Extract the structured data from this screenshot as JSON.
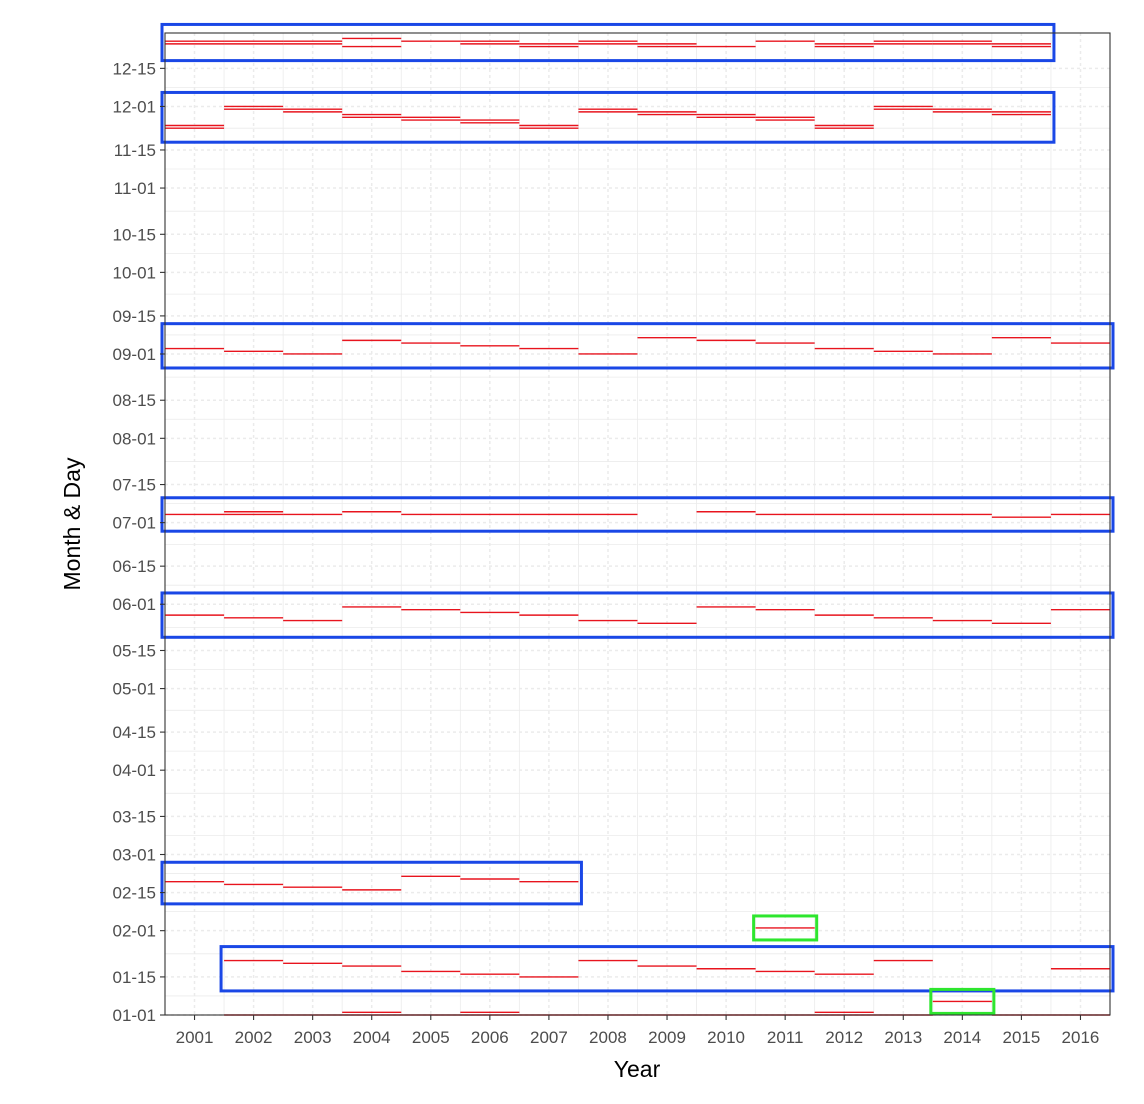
{
  "chart_data": {
    "type": "scatter",
    "mark": "horizontal-segment",
    "xlabel": "Year",
    "ylabel": "Month & Day",
    "x_ticks": [
      "2001",
      "2002",
      "2003",
      "2004",
      "2005",
      "2006",
      "2007",
      "2008",
      "2009",
      "2010",
      "2011",
      "2012",
      "2013",
      "2014",
      "2015",
      "2016"
    ],
    "y_ticks": [
      "01-01",
      "01-15",
      "02-01",
      "02-15",
      "03-01",
      "03-15",
      "04-01",
      "04-15",
      "05-01",
      "05-15",
      "06-01",
      "06-15",
      "07-01",
      "07-15",
      "08-01",
      "08-15",
      "09-01",
      "09-15",
      "10-01",
      "10-15",
      "11-01",
      "11-15",
      "12-01",
      "12-15"
    ],
    "xlim": [
      2000.5,
      2016.5
    ],
    "ylim": [
      "01-01",
      "12-28"
    ],
    "grid": true,
    "colors": {
      "segment": "#e8141e",
      "group_box": "#1a47e6",
      "outlier_box": "#2ee62e",
      "grid": "#ebebeb"
    },
    "groups": [
      {
        "segments": [
          {
            "year": 2001,
            "dates": [
              "12-24",
              "12-25"
            ]
          },
          {
            "year": 2002,
            "dates": [
              "12-24",
              "12-25"
            ]
          },
          {
            "year": 2003,
            "dates": [
              "12-24",
              "12-25"
            ]
          },
          {
            "year": 2004,
            "dates": [
              "12-23",
              "12-26"
            ]
          },
          {
            "year": 2005,
            "dates": [
              "12-25"
            ]
          },
          {
            "year": 2006,
            "dates": [
              "12-24",
              "12-25"
            ]
          },
          {
            "year": 2007,
            "dates": [
              "12-23",
              "12-24"
            ]
          },
          {
            "year": 2008,
            "dates": [
              "12-24",
              "12-25"
            ]
          },
          {
            "year": 2009,
            "dates": [
              "12-23",
              "12-24"
            ]
          },
          {
            "year": 2010,
            "dates": [
              "12-23"
            ]
          },
          {
            "year": 2011,
            "dates": [
              "12-25"
            ]
          },
          {
            "year": 2012,
            "dates": [
              "12-23",
              "12-24"
            ]
          },
          {
            "year": 2013,
            "dates": [
              "12-24",
              "12-25"
            ]
          },
          {
            "year": 2014,
            "dates": [
              "12-24",
              "12-25"
            ]
          },
          {
            "year": 2015,
            "dates": [
              "12-23",
              "12-24"
            ]
          }
        ]
      },
      {
        "segments": [
          {
            "year": 2001,
            "dates": [
              "11-23",
              "11-24"
            ]
          },
          {
            "year": 2002,
            "dates": [
              "11-30",
              "12-01"
            ]
          },
          {
            "year": 2003,
            "dates": [
              "11-29",
              "11-30"
            ]
          },
          {
            "year": 2004,
            "dates": [
              "11-27",
              "11-28"
            ]
          },
          {
            "year": 2005,
            "dates": [
              "11-26",
              "11-27"
            ]
          },
          {
            "year": 2006,
            "dates": [
              "11-25",
              "11-26"
            ]
          },
          {
            "year": 2007,
            "dates": [
              "11-23",
              "11-24"
            ]
          },
          {
            "year": 2008,
            "dates": [
              "11-29",
              "11-30"
            ]
          },
          {
            "year": 2009,
            "dates": [
              "11-28",
              "11-29"
            ]
          },
          {
            "year": 2010,
            "dates": [
              "11-27",
              "11-28"
            ]
          },
          {
            "year": 2011,
            "dates": [
              "11-26",
              "11-27"
            ]
          },
          {
            "year": 2012,
            "dates": [
              "11-23",
              "11-24"
            ]
          },
          {
            "year": 2013,
            "dates": [
              "11-30",
              "12-01"
            ]
          },
          {
            "year": 2014,
            "dates": [
              "11-29",
              "11-30"
            ]
          },
          {
            "year": 2015,
            "dates": [
              "11-28",
              "11-29"
            ]
          }
        ]
      },
      {
        "segments": [
          {
            "year": 2001,
            "dates": [
              "09-03"
            ]
          },
          {
            "year": 2002,
            "dates": [
              "09-02"
            ]
          },
          {
            "year": 2003,
            "dates": [
              "09-01"
            ]
          },
          {
            "year": 2004,
            "dates": [
              "09-06"
            ]
          },
          {
            "year": 2005,
            "dates": [
              "09-05"
            ]
          },
          {
            "year": 2006,
            "dates": [
              "09-04"
            ]
          },
          {
            "year": 2007,
            "dates": [
              "09-03"
            ]
          },
          {
            "year": 2008,
            "dates": [
              "09-01"
            ]
          },
          {
            "year": 2009,
            "dates": [
              "09-07"
            ]
          },
          {
            "year": 2010,
            "dates": [
              "09-06"
            ]
          },
          {
            "year": 2011,
            "dates": [
              "09-05"
            ]
          },
          {
            "year": 2012,
            "dates": [
              "09-03"
            ]
          },
          {
            "year": 2013,
            "dates": [
              "09-02"
            ]
          },
          {
            "year": 2014,
            "dates": [
              "09-01"
            ]
          },
          {
            "year": 2015,
            "dates": [
              "09-07"
            ]
          },
          {
            "year": 2016,
            "dates": [
              "09-05"
            ]
          }
        ]
      },
      {
        "segments": [
          {
            "year": 2001,
            "dates": [
              "07-04"
            ]
          },
          {
            "year": 2002,
            "dates": [
              "07-04",
              "07-05"
            ]
          },
          {
            "year": 2003,
            "dates": [
              "07-04"
            ]
          },
          {
            "year": 2004,
            "dates": [
              "07-05"
            ]
          },
          {
            "year": 2005,
            "dates": [
              "07-04"
            ]
          },
          {
            "year": 2006,
            "dates": [
              "07-04"
            ]
          },
          {
            "year": 2007,
            "dates": [
              "07-04"
            ]
          },
          {
            "year": 2008,
            "dates": [
              "07-04"
            ]
          },
          {
            "year": 2010,
            "dates": [
              "07-05"
            ]
          },
          {
            "year": 2011,
            "dates": [
              "07-04"
            ]
          },
          {
            "year": 2012,
            "dates": [
              "07-04"
            ]
          },
          {
            "year": 2013,
            "dates": [
              "07-04"
            ]
          },
          {
            "year": 2014,
            "dates": [
              "07-04"
            ]
          },
          {
            "year": 2015,
            "dates": [
              "07-03"
            ]
          },
          {
            "year": 2016,
            "dates": [
              "07-04"
            ]
          }
        ]
      },
      {
        "segments": [
          {
            "year": 2001,
            "dates": [
              "05-28"
            ]
          },
          {
            "year": 2002,
            "dates": [
              "05-27"
            ]
          },
          {
            "year": 2003,
            "dates": [
              "05-26"
            ]
          },
          {
            "year": 2004,
            "dates": [
              "05-31"
            ]
          },
          {
            "year": 2005,
            "dates": [
              "05-30"
            ]
          },
          {
            "year": 2006,
            "dates": [
              "05-29"
            ]
          },
          {
            "year": 2007,
            "dates": [
              "05-28"
            ]
          },
          {
            "year": 2008,
            "dates": [
              "05-26"
            ]
          },
          {
            "year": 2009,
            "dates": [
              "05-25"
            ]
          },
          {
            "year": 2010,
            "dates": [
              "05-31"
            ]
          },
          {
            "year": 2011,
            "dates": [
              "05-30"
            ]
          },
          {
            "year": 2012,
            "dates": [
              "05-28"
            ]
          },
          {
            "year": 2013,
            "dates": [
              "05-27"
            ]
          },
          {
            "year": 2014,
            "dates": [
              "05-26"
            ]
          },
          {
            "year": 2015,
            "dates": [
              "05-25"
            ]
          },
          {
            "year": 2016,
            "dates": [
              "05-30"
            ]
          }
        ]
      },
      {
        "segments": [
          {
            "year": 2001,
            "dates": [
              "02-19"
            ]
          },
          {
            "year": 2002,
            "dates": [
              "02-18"
            ]
          },
          {
            "year": 2003,
            "dates": [
              "02-17"
            ]
          },
          {
            "year": 2004,
            "dates": [
              "02-16"
            ]
          },
          {
            "year": 2005,
            "dates": [
              "02-21"
            ]
          },
          {
            "year": 2006,
            "dates": [
              "02-20"
            ]
          },
          {
            "year": 2007,
            "dates": [
              "02-19"
            ]
          }
        ]
      },
      {
        "segments": [
          {
            "year": 2002,
            "dates": [
              "01-21"
            ]
          },
          {
            "year": 2003,
            "dates": [
              "01-20"
            ]
          },
          {
            "year": 2004,
            "dates": [
              "01-19"
            ]
          },
          {
            "year": 2005,
            "dates": [
              "01-17"
            ]
          },
          {
            "year": 2006,
            "dates": [
              "01-16"
            ]
          },
          {
            "year": 2007,
            "dates": [
              "01-15"
            ]
          },
          {
            "year": 2008,
            "dates": [
              "01-21"
            ]
          },
          {
            "year": 2009,
            "dates": [
              "01-19"
            ]
          },
          {
            "year": 2010,
            "dates": [
              "01-18"
            ]
          },
          {
            "year": 2011,
            "dates": [
              "01-17"
            ]
          },
          {
            "year": 2012,
            "dates": [
              "01-16"
            ]
          },
          {
            "year": 2013,
            "dates": [
              "01-21"
            ]
          },
          {
            "year": 2016,
            "dates": [
              "01-18"
            ]
          }
        ]
      }
    ],
    "outliers": [
      {
        "year": 2011,
        "dates": [
          "02-02"
        ]
      },
      {
        "year": 2014,
        "dates": [
          "01-06"
        ]
      }
    ],
    "new_year_segments": [
      {
        "year": 2002,
        "dates": [
          "01-01"
        ]
      },
      {
        "year": 2003,
        "dates": [
          "01-01"
        ]
      },
      {
        "year": 2004,
        "dates": [
          "01-01",
          "01-02"
        ]
      },
      {
        "year": 2005,
        "dates": [
          "01-01"
        ]
      },
      {
        "year": 2006,
        "dates": [
          "01-01",
          "01-02"
        ]
      },
      {
        "year": 2007,
        "dates": [
          "01-01"
        ]
      },
      {
        "year": 2008,
        "dates": [
          "01-01"
        ]
      },
      {
        "year": 2009,
        "dates": [
          "01-01"
        ]
      },
      {
        "year": 2010,
        "dates": [
          "01-01"
        ]
      },
      {
        "year": 2011,
        "dates": [
          "01-01"
        ]
      },
      {
        "year": 2012,
        "dates": [
          "01-01",
          "01-02"
        ]
      },
      {
        "year": 2013,
        "dates": [
          "01-01"
        ]
      },
      {
        "year": 2015,
        "dates": [
          "01-01"
        ]
      },
      {
        "year": 2016,
        "dates": [
          "01-01"
        ]
      }
    ]
  }
}
